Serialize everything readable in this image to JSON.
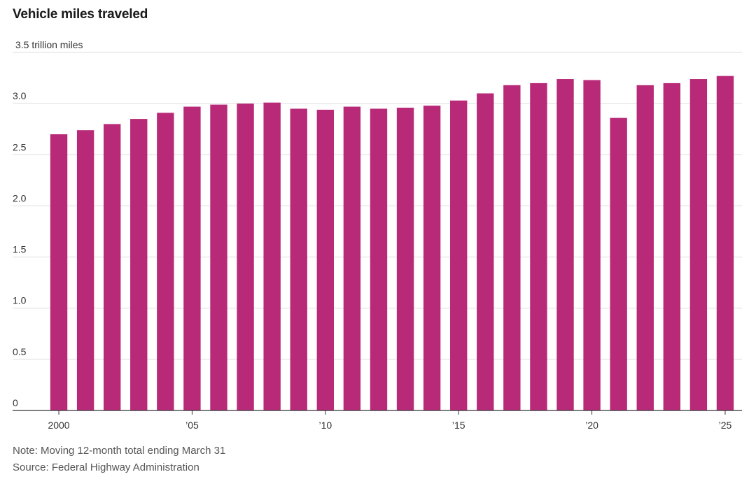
{
  "title": "Vehicle miles traveled",
  "note": "Note: Moving 12-month total ending March 31",
  "source": "Source: Federal Highway Administration",
  "colors": {
    "bar": "#B82A78",
    "grid": "#dddddd",
    "axis": "#333333"
  },
  "chart_data": {
    "type": "bar",
    "title": "Vehicle miles traveled",
    "ylabel": "",
    "y_unit_label": "3.5 trillion miles",
    "ylim": [
      0,
      3.5
    ],
    "yticks": [
      0,
      0.5,
      1.0,
      1.5,
      2.0,
      2.5,
      3.0,
      3.5
    ],
    "ytick_labels": [
      "0",
      "0.5",
      "1.0",
      "1.5",
      "2.0",
      "2.5",
      "3.0",
      "3.5 trillion miles"
    ],
    "categories": [
      "2000",
      "2001",
      "2002",
      "2003",
      "2004",
      "2005",
      "2006",
      "2007",
      "2008",
      "2009",
      "2010",
      "2011",
      "2012",
      "2013",
      "2014",
      "2015",
      "2016",
      "2017",
      "2018",
      "2019",
      "2020",
      "2021",
      "2022",
      "2023",
      "2024",
      "2025"
    ],
    "xtick_labels": [
      {
        "category": "2000",
        "label": "2000"
      },
      {
        "category": "2005",
        "label": "’05"
      },
      {
        "category": "2010",
        "label": "’10"
      },
      {
        "category": "2015",
        "label": "’15"
      },
      {
        "category": "2020",
        "label": "’20"
      },
      {
        "category": "2025",
        "label": "’25"
      }
    ],
    "values": [
      2.7,
      2.74,
      2.8,
      2.85,
      2.91,
      2.97,
      2.99,
      3.0,
      3.01,
      2.95,
      2.94,
      2.97,
      2.95,
      2.96,
      2.98,
      3.03,
      3.1,
      3.18,
      3.2,
      3.24,
      3.23,
      2.86,
      3.18,
      3.2,
      3.24,
      3.27
    ],
    "grid": true,
    "legend": "none"
  }
}
